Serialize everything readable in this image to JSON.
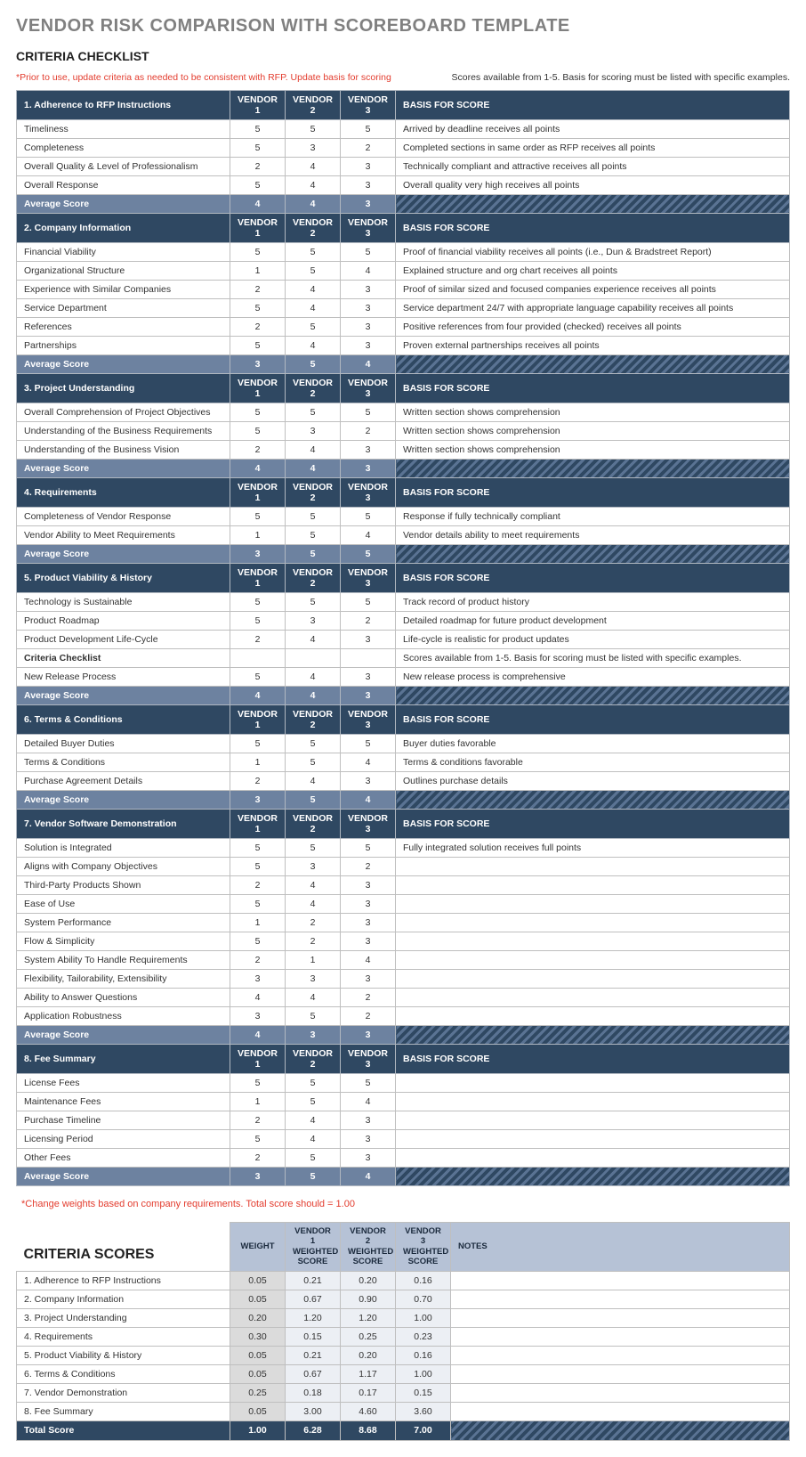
{
  "colors": {
    "header_bg": "#2f4862",
    "header_text": "#ffffff",
    "avg_bg": "#6d82a0",
    "hatch_fg": "#5a7393",
    "hatch_bg": "#2f4862",
    "score_head_bg": "#b6c2d6",
    "score_w_bg": "#dbdbdb",
    "score_vs_bg": "#eceff4",
    "border": "#bfbfbf",
    "red": "#e33c2e",
    "title_grey": "#808080"
  },
  "title": "VENDOR RISK COMPARISON WITH SCOREBOARD TEMPLATE",
  "subtitle": "CRITERIA CHECKLIST",
  "note_left": "*Prior to use, update criteria as needed to be consistent with RFP. Update basis for scoring",
  "note_right": "Scores available from 1-5. Basis for scoring must be listed with specific examples.",
  "vendor_headers": [
    "VENDOR 1",
    "VENDOR 2",
    "VENDOR 3"
  ],
  "basis_header": "BASIS FOR SCORE",
  "avg_label": "Average Score",
  "sections": [
    {
      "title": "1. Adherence to RFP Instructions",
      "rows": [
        {
          "crit": "Timeliness",
          "v": [
            5,
            5,
            5
          ],
          "basis": "Arrived by deadline receives all points"
        },
        {
          "crit": "Completeness",
          "v": [
            5,
            3,
            2
          ],
          "basis": "Completed sections in same order as RFP receives all points"
        },
        {
          "crit": "Overall Quality & Level of Professionalism",
          "v": [
            2,
            4,
            3
          ],
          "basis": "Technically compliant and attractive receives all points"
        },
        {
          "crit": "Overall Response",
          "v": [
            5,
            4,
            3
          ],
          "basis": "Overall quality very high receives all points"
        }
      ],
      "avg": [
        4,
        4,
        3
      ]
    },
    {
      "title": "2. Company Information",
      "rows": [
        {
          "crit": "Financial Viability",
          "v": [
            5,
            5,
            5
          ],
          "basis": "Proof of financial viability receives all points (i.e., Dun & Bradstreet Report)"
        },
        {
          "crit": "Organizational Structure",
          "v": [
            1,
            5,
            4
          ],
          "basis": "Explained structure and org chart receives all points"
        },
        {
          "crit": "Experience with Similar Companies",
          "v": [
            2,
            4,
            3
          ],
          "basis": "Proof of similar sized and focused companies experience receives all points"
        },
        {
          "crit": "Service Department",
          "v": [
            5,
            4,
            3
          ],
          "basis": "Service department 24/7 with appropriate language capability receives all points"
        },
        {
          "crit": "References",
          "v": [
            2,
            5,
            3
          ],
          "basis": "Positive references from four provided (checked) receives all points"
        },
        {
          "crit": "Partnerships",
          "v": [
            5,
            4,
            3
          ],
          "basis": "Proven external partnerships receives all points"
        }
      ],
      "avg": [
        3,
        5,
        4
      ]
    },
    {
      "title": "3. Project Understanding",
      "rows": [
        {
          "crit": "Overall Comprehension of Project Objectives",
          "v": [
            5,
            5,
            5
          ],
          "basis": "Written section shows comprehension"
        },
        {
          "crit": "Understanding of the Business Requirements",
          "v": [
            5,
            3,
            2
          ],
          "basis": "Written section shows comprehension"
        },
        {
          "crit": "Understanding of the Business Vision",
          "v": [
            2,
            4,
            3
          ],
          "basis": "Written section shows comprehension"
        }
      ],
      "avg": [
        4,
        4,
        3
      ]
    },
    {
      "title": "4. Requirements",
      "rows": [
        {
          "crit": "Completeness of Vendor Response",
          "v": [
            5,
            5,
            5
          ],
          "basis": "Response if fully technically compliant"
        },
        {
          "crit": "Vendor Ability to Meet Requirements",
          "v": [
            1,
            5,
            4
          ],
          "basis": "Vendor details ability to meet requirements"
        }
      ],
      "avg": [
        3,
        5,
        5
      ]
    },
    {
      "title": "5. Product Viability & History",
      "rows": [
        {
          "crit": "Technology is Sustainable",
          "v": [
            5,
            5,
            5
          ],
          "basis": "Track record of product history"
        },
        {
          "crit": "Product Roadmap",
          "v": [
            5,
            3,
            2
          ],
          "basis": "Detailed roadmap for future product development"
        },
        {
          "crit": "Product Development Life-Cycle",
          "v": [
            2,
            4,
            3
          ],
          "basis": "Life-cycle is realistic for product updates"
        },
        {
          "crit": "Criteria Checklist",
          "v": [
            "",
            "",
            ""
          ],
          "basis": "Scores available from 1-5. Basis for scoring must be listed with specific examples.",
          "bold": true
        },
        {
          "crit": "New Release Process",
          "v": [
            5,
            4,
            3
          ],
          "basis": "New release process is comprehensive"
        }
      ],
      "avg": [
        4,
        4,
        3
      ]
    },
    {
      "title": "6. Terms & Conditions",
      "rows": [
        {
          "crit": "Detailed Buyer Duties",
          "v": [
            5,
            5,
            5
          ],
          "basis": "Buyer duties favorable"
        },
        {
          "crit": "Terms & Conditions",
          "v": [
            1,
            5,
            4
          ],
          "basis": "Terms & conditions favorable"
        },
        {
          "crit": "Purchase Agreement Details",
          "v": [
            2,
            4,
            3
          ],
          "basis": "Outlines purchase details"
        }
      ],
      "avg": [
        3,
        5,
        4
      ]
    },
    {
      "title": "7. Vendor Software Demonstration",
      "rows": [
        {
          "crit": "Solution is Integrated",
          "v": [
            5,
            5,
            5
          ],
          "basis": "Fully integrated solution receives full points"
        },
        {
          "crit": "Aligns with Company Objectives",
          "v": [
            5,
            3,
            2
          ],
          "basis": ""
        },
        {
          "crit": "Third-Party Products Shown",
          "v": [
            2,
            4,
            3
          ],
          "basis": ""
        },
        {
          "crit": "Ease of Use",
          "v": [
            5,
            4,
            3
          ],
          "basis": ""
        },
        {
          "crit": "System Performance",
          "v": [
            1,
            2,
            3
          ],
          "basis": ""
        },
        {
          "crit": "Flow & Simplicity",
          "v": [
            5,
            2,
            3
          ],
          "basis": ""
        },
        {
          "crit": "System Ability To Handle Requirements",
          "v": [
            2,
            1,
            4
          ],
          "basis": ""
        },
        {
          "crit": "Flexibility, Tailorability, Extensibility",
          "v": [
            3,
            3,
            3
          ],
          "basis": ""
        },
        {
          "crit": "Ability to Answer Questions",
          "v": [
            4,
            4,
            2
          ],
          "basis": ""
        },
        {
          "crit": "Application Robustness",
          "v": [
            3,
            5,
            2
          ],
          "basis": ""
        }
      ],
      "avg": [
        4,
        3,
        3
      ]
    },
    {
      "title": "8. Fee Summary",
      "rows": [
        {
          "crit": "License Fees",
          "v": [
            5,
            5,
            5
          ],
          "basis": ""
        },
        {
          "crit": "Maintenance Fees",
          "v": [
            1,
            5,
            4
          ],
          "basis": ""
        },
        {
          "crit": "Purchase Timeline",
          "v": [
            2,
            4,
            3
          ],
          "basis": ""
        },
        {
          "crit": "Licensing Period",
          "v": [
            5,
            4,
            3
          ],
          "basis": ""
        },
        {
          "crit": "Other Fees",
          "v": [
            2,
            5,
            3
          ],
          "basis": ""
        }
      ],
      "avg": [
        3,
        5,
        4
      ]
    }
  ],
  "weights_note": "*Change weights based on company requirements. Total score should = 1.00",
  "scores_title": "CRITERIA SCORES",
  "scores_headers": {
    "weight": "WEIGHT",
    "v1": "VENDOR 1 WEIGHTED SCORE",
    "v2": "VENDOR 2 WEIGHTED SCORE",
    "v3": "VENDOR 3 WEIGHTED SCORE",
    "notes": "NOTES"
  },
  "scores_rows": [
    {
      "crit": "1. Adherence to RFP Instructions",
      "w": "0.05",
      "v": [
        "0.21",
        "0.20",
        "0.16"
      ],
      "notes": ""
    },
    {
      "crit": "2. Company Information",
      "w": "0.05",
      "v": [
        "0.67",
        "0.90",
        "0.70"
      ],
      "notes": ""
    },
    {
      "crit": "3. Project Understanding",
      "w": "0.20",
      "v": [
        "1.20",
        "1.20",
        "1.00"
      ],
      "notes": ""
    },
    {
      "crit": "4. Requirements",
      "w": "0.30",
      "v": [
        "0.15",
        "0.25",
        "0.23"
      ],
      "notes": ""
    },
    {
      "crit": "5. Product Viability & History",
      "w": "0.05",
      "v": [
        "0.21",
        "0.20",
        "0.16"
      ],
      "notes": ""
    },
    {
      "crit": "6. Terms & Conditions",
      "w": "0.05",
      "v": [
        "0.67",
        "1.17",
        "1.00"
      ],
      "notes": ""
    },
    {
      "crit": "7. Vendor Demonstration",
      "w": "0.25",
      "v": [
        "0.18",
        "0.17",
        "0.15"
      ],
      "notes": ""
    },
    {
      "crit": "8. Fee Summary",
      "w": "0.05",
      "v": [
        "3.00",
        "4.60",
        "3.60"
      ],
      "notes": ""
    }
  ],
  "scores_total": {
    "label": "Total Score",
    "w": "1.00",
    "v": [
      "6.28",
      "8.68",
      "7.00"
    ]
  }
}
